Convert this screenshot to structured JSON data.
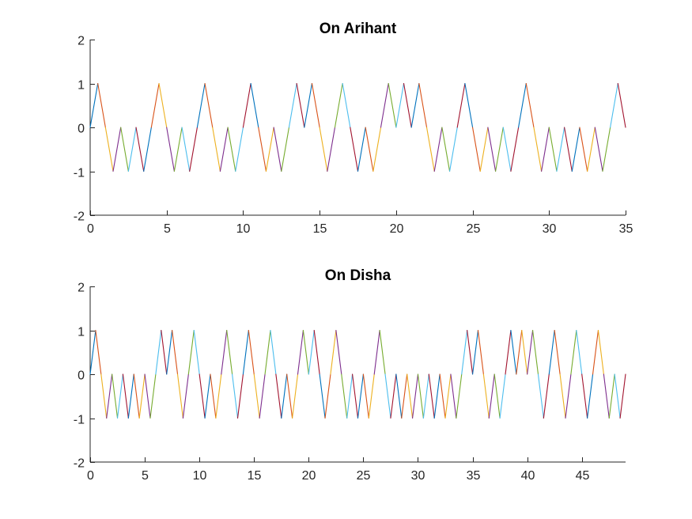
{
  "figure": {
    "background": "#ffffff"
  },
  "chart_data": [
    {
      "type": "line",
      "title": "On Arihant",
      "xlabel": "",
      "ylabel": "",
      "xlim": [
        0,
        35
      ],
      "ylim": [
        -2,
        2
      ],
      "xticks": [
        0,
        5,
        10,
        15,
        20,
        25,
        30,
        35
      ],
      "xtick_labels": [
        "0",
        "5",
        "10",
        "15",
        "20",
        "25",
        "30",
        "35"
      ],
      "yticks": [
        -2,
        -1,
        0,
        1,
        2
      ],
      "ytick_labels": [
        "-2",
        "-1",
        "0",
        "1",
        "2"
      ],
      "grid": false,
      "x": [
        0,
        0.5,
        1,
        1.5,
        2,
        2.5,
        3,
        3.5,
        4,
        4.5,
        5,
        5.5,
        6,
        6.5,
        7,
        7.5,
        8,
        8.5,
        9,
        9.5,
        10,
        10.5,
        11,
        11.5,
        12,
        12.5,
        13,
        13.5,
        14,
        14.5,
        15,
        15.5,
        16,
        16.5,
        17,
        17.5,
        18,
        18.5,
        19,
        19.5,
        20,
        20.5,
        21,
        21.5,
        22,
        22.5,
        23,
        23.5,
        24,
        24.5,
        25,
        25.5,
        26,
        26.5,
        27,
        27.5,
        28,
        28.5,
        29,
        29.5,
        30,
        30.5,
        31,
        31.5,
        32,
        32.5,
        33,
        33.5,
        34,
        34.5,
        35
      ],
      "y": [
        0,
        1,
        0,
        -1,
        0,
        -1,
        0,
        -1,
        0,
        1,
        0,
        -1,
        0,
        -1,
        0,
        1,
        0,
        -1,
        0,
        -1,
        0,
        1,
        0,
        -1,
        0,
        -1,
        0,
        1,
        0,
        1,
        0,
        -1,
        0,
        1,
        0,
        -1,
        0,
        -1,
        0,
        1,
        0,
        1,
        0,
        1,
        0,
        -1,
        0,
        -1,
        0,
        1,
        0,
        -1,
        0,
        -1,
        0,
        -1,
        0,
        1,
        0,
        -1,
        0,
        -1,
        0,
        -1,
        0,
        -1,
        0,
        -1,
        0,
        1,
        0
      ],
      "series_colors": [
        "#0072BD",
        "#D95319",
        "#EDB120",
        "#7E2F8E",
        "#77AC30",
        "#4DBEEE",
        "#A2142F"
      ]
    },
    {
      "type": "line",
      "title": "On Disha",
      "xlabel": "",
      "ylabel": "",
      "xlim": [
        0,
        49
      ],
      "ylim": [
        -2,
        2
      ],
      "xticks": [
        0,
        5,
        10,
        15,
        20,
        25,
        30,
        35,
        40,
        45
      ],
      "xtick_labels": [
        "0",
        "5",
        "10",
        "15",
        "20",
        "25",
        "30",
        "35",
        "40",
        "45"
      ],
      "yticks": [
        -2,
        -1,
        0,
        1,
        2
      ],
      "ytick_labels": [
        "-2",
        "-1",
        "0",
        "1",
        "2"
      ],
      "grid": false,
      "x": [
        0,
        0.5,
        1,
        1.5,
        2,
        2.5,
        3,
        3.5,
        4,
        4.5,
        5,
        5.5,
        6,
        6.5,
        7,
        7.5,
        8,
        8.5,
        9,
        9.5,
        10,
        10.5,
        11,
        11.5,
        12,
        12.5,
        13,
        13.5,
        14,
        14.5,
        15,
        15.5,
        16,
        16.5,
        17,
        17.5,
        18,
        18.5,
        19,
        19.5,
        20,
        20.5,
        21,
        21.5,
        22,
        22.5,
        23,
        23.5,
        24,
        24.5,
        25,
        25.5,
        26,
        26.5,
        27,
        27.5,
        28,
        28.5,
        29,
        29.5,
        30,
        30.5,
        31,
        31.5,
        32,
        32.5,
        33,
        33.5,
        34,
        34.5,
        35,
        35.5,
        36,
        36.5,
        37,
        37.5,
        38,
        38.5,
        39,
        39.5,
        40,
        40.5,
        41,
        41.5,
        42,
        42.5,
        43,
        43.5,
        44,
        44.5,
        45,
        45.5,
        46,
        46.5,
        47,
        47.5,
        48,
        48.5,
        49
      ],
      "y": [
        0,
        1,
        0,
        -1,
        0,
        -1,
        0,
        -1,
        0,
        -1,
        0,
        -1,
        0,
        1,
        0,
        1,
        0,
        -1,
        0,
        1,
        0,
        -1,
        0,
        -1,
        0,
        1,
        0,
        -1,
        0,
        1,
        0,
        -1,
        0,
        1,
        0,
        -1,
        0,
        -1,
        0,
        1,
        0,
        1,
        0,
        -1,
        0,
        1,
        0,
        -1,
        0,
        -1,
        0,
        -1,
        0,
        1,
        0,
        -1,
        0,
        -1,
        0,
        -1,
        0,
        -1,
        0,
        -1,
        0,
        -1,
        0,
        -1,
        0,
        1,
        0,
        1,
        0,
        -1,
        0,
        -1,
        0,
        1,
        0,
        1,
        0,
        1,
        0,
        -1,
        0,
        1,
        0,
        -1,
        0,
        1,
        0,
        -1,
        0,
        1,
        0,
        -1,
        0,
        -1,
        0
      ],
      "series_colors": [
        "#0072BD",
        "#D95319",
        "#EDB120",
        "#7E2F8E",
        "#77AC30",
        "#4DBEEE",
        "#A2142F"
      ]
    }
  ]
}
